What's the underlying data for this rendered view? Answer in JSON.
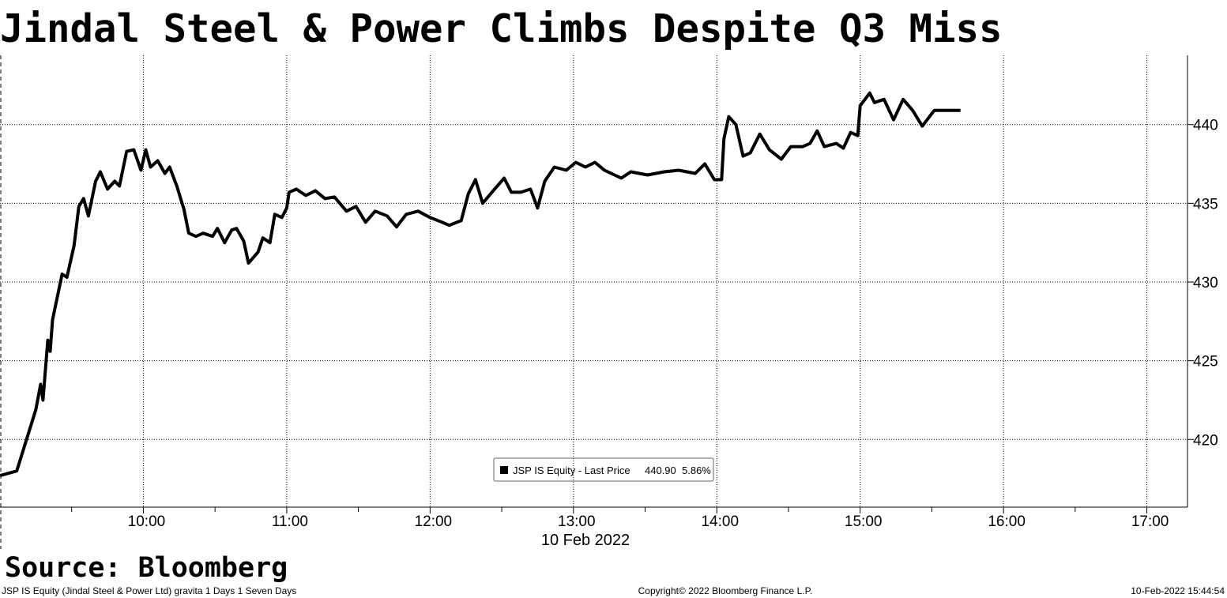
{
  "chart_data": {
    "type": "line",
    "title": "Jindal Steel & Power Climbs Despite Q3 Miss",
    "source": "Source: Bloomberg",
    "x_axis_label": "10 Feb 2022",
    "footer": {
      "left": "JSP IS Equity (Jindal Steel & Power Ltd) gravita 1 Days 1 Seven Days",
      "center": "Copyright© 2022 Bloomberg Finance L.P.",
      "right": "10-Feb-2022 15:44:54"
    },
    "legend": {
      "last_price": "440.90",
      "change": "5.86%"
    },
    "x": [
      "09:00",
      "09:07",
      "09:15",
      "09:17",
      "09:18",
      "09:20",
      "09:21",
      "09:22",
      "09:26",
      "09:28",
      "09:31",
      "09:33",
      "09:35",
      "09:37",
      "09:40",
      "09:42",
      "09:45",
      "09:48",
      "09:50",
      "09:53",
      "09:56",
      "09:59",
      "10:01",
      "10:03",
      "10:06",
      "10:09",
      "10:11",
      "10:14",
      "10:17",
      "10:19",
      "10:22",
      "10:25",
      "10:29",
      "10:31",
      "10:34",
      "10:37",
      "10:39",
      "10:42",
      "10:44",
      "10:48",
      "10:50",
      "10:53",
      "10:55",
      "10:58",
      "11:00",
      "11:01",
      "11:04",
      "11:08",
      "11:12",
      "11:16",
      "11:20",
      "11:25",
      "11:29",
      "11:33",
      "11:37",
      "11:42",
      "11:46",
      "11:50",
      "11:55",
      "12:00",
      "12:05",
      "12:08",
      "12:13",
      "12:16",
      "12:19",
      "12:22",
      "12:27",
      "12:31",
      "12:34",
      "12:38",
      "12:42",
      "12:45",
      "12:48",
      "12:52",
      "12:57",
      "13:01",
      "13:05",
      "13:09",
      "13:13",
      "13:20",
      "13:24",
      "13:31",
      "13:38",
      "13:44",
      "13:51",
      "13:55",
      "13:59",
      "14:02",
      "14:03",
      "14:05",
      "14:08",
      "14:11",
      "14:14",
      "14:18",
      "14:22",
      "14:27",
      "14:31",
      "14:36",
      "14:39",
      "14:42",
      "14:45",
      "14:50",
      "14:53",
      "14:56",
      "14:59",
      "15:00",
      "15:04",
      "15:06",
      "15:10",
      "15:14",
      "15:18",
      "15:22",
      "15:26",
      "15:31",
      "15:42"
    ],
    "series": [
      {
        "name": "JSP IS Equity - Last Price",
        "color": "#000000",
        "values": [
          417.7,
          418.0,
          421.9,
          423.5,
          422.5,
          426.3,
          425.6,
          427.6,
          430.5,
          430.3,
          432.3,
          434.8,
          435.3,
          434.2,
          436.4,
          437.0,
          435.9,
          436.4,
          436.1,
          438.3,
          438.4,
          437.1,
          438.4,
          437.3,
          437.7,
          436.9,
          437.3,
          436.1,
          434.6,
          433.1,
          432.9,
          433.1,
          432.9,
          433.4,
          432.5,
          433.3,
          433.4,
          432.6,
          431.2,
          431.9,
          432.8,
          432.5,
          434.3,
          434.1,
          434.7,
          435.7,
          435.9,
          435.5,
          435.8,
          435.3,
          435.4,
          434.5,
          434.8,
          433.8,
          434.5,
          434.2,
          433.5,
          434.3,
          434.5,
          434.1,
          433.8,
          433.6,
          433.9,
          435.6,
          436.5,
          435.0,
          435.9,
          436.6,
          435.7,
          435.7,
          435.9,
          434.7,
          436.4,
          437.3,
          437.1,
          437.6,
          437.3,
          437.6,
          437.1,
          436.6,
          437.0,
          436.8,
          437.0,
          437.1,
          436.9,
          437.5,
          436.5,
          436.5,
          439.1,
          440.5,
          440.0,
          438.0,
          438.2,
          439.4,
          438.4,
          437.8,
          438.6,
          438.6,
          438.8,
          439.6,
          438.6,
          438.8,
          438.5,
          439.5,
          439.3,
          441.2,
          442.0,
          441.4,
          441.6,
          440.3,
          441.6,
          440.9,
          439.9,
          440.9,
          440.9
        ]
      }
    ],
    "xlim": [
      "09:00",
      "17:17"
    ],
    "xticks": [
      "10:00",
      "11:00",
      "12:00",
      "13:00",
      "14:00",
      "15:00",
      "16:00",
      "17:00"
    ],
    "ylim": [
      415.7,
      444.4
    ],
    "yticks": [
      420,
      425,
      430,
      435,
      440
    ],
    "grid": true
  }
}
